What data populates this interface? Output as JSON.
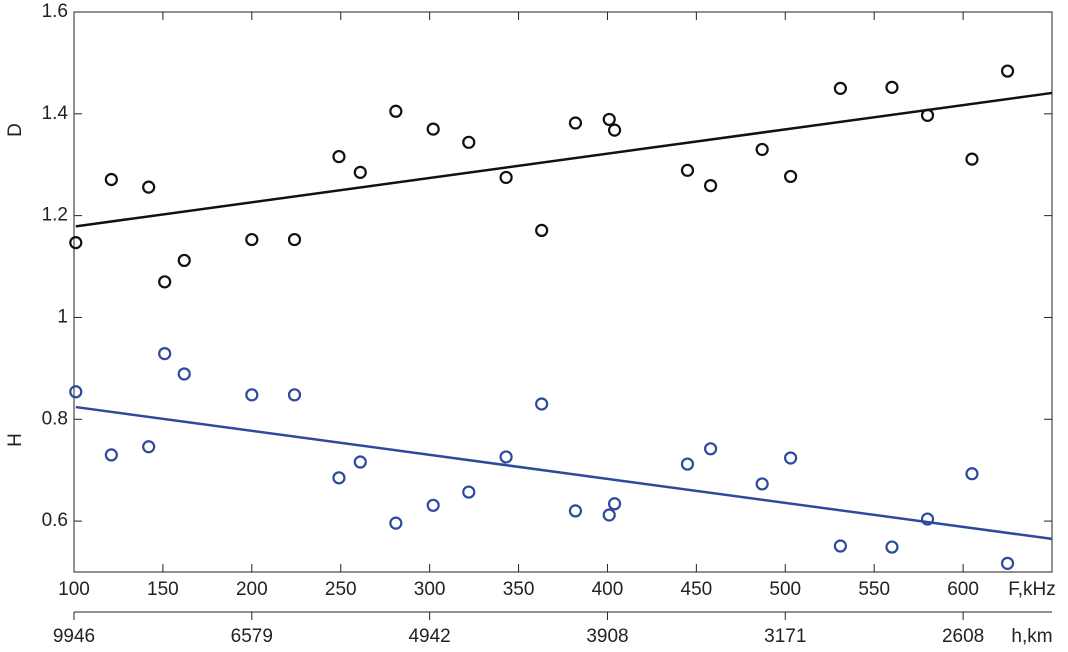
{
  "chart_data": {
    "type": "scatter",
    "xlabel": "F,kHz",
    "x2label": "h,km",
    "ylabels": [
      "D",
      "H"
    ],
    "xlim": [
      100,
      650
    ],
    "ylim": [
      0.5,
      1.6
    ],
    "xticks": [
      100,
      150,
      200,
      250,
      300,
      350,
      400,
      450,
      500,
      550,
      600
    ],
    "x2ticks": [
      {
        "value": 100,
        "label": "9946"
      },
      {
        "value": 200,
        "label": "6579"
      },
      {
        "value": 300,
        "label": "4942"
      },
      {
        "value": 400,
        "label": "3908"
      },
      {
        "value": 500,
        "label": "3171"
      },
      {
        "value": 600,
        "label": "2608"
      }
    ],
    "yticks": [
      0.6,
      0.8,
      1,
      1.2,
      1.4,
      1.6
    ],
    "x": [
      101,
      121,
      142,
      151,
      162,
      200,
      224,
      249,
      261,
      281,
      302,
      322,
      343,
      363,
      382,
      401,
      404,
      445,
      458,
      487,
      503,
      531,
      560,
      580,
      605,
      625
    ],
    "series": [
      {
        "name": "D",
        "color": "#111111",
        "values": [
          1.147,
          1.271,
          1.256,
          1.07,
          1.112,
          1.153,
          1.153,
          1.316,
          1.285,
          1.405,
          1.37,
          1.344,
          1.275,
          1.171,
          1.382,
          1.389,
          1.368,
          1.289,
          1.259,
          1.33,
          1.277,
          1.45,
          1.452,
          1.397,
          1.311,
          1.484
        ]
      },
      {
        "name": "H",
        "color": "#2e4a9c",
        "values": [
          0.854,
          0.73,
          0.746,
          0.929,
          0.889,
          0.848,
          0.848,
          0.685,
          0.716,
          0.596,
          0.631,
          0.657,
          0.726,
          0.83,
          0.62,
          0.612,
          0.634,
          0.712,
          0.742,
          0.673,
          0.724,
          0.551,
          0.549,
          0.604,
          0.693,
          0.517
        ]
      }
    ],
    "fits": [
      {
        "color": "#111111",
        "x": [
          101,
          650
        ],
        "values": [
          1.179,
          1.441
        ]
      },
      {
        "color": "#2e4a9c",
        "x": [
          101,
          650
        ],
        "values": [
          0.824,
          0.565
        ]
      }
    ]
  }
}
